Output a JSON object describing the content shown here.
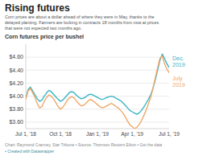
{
  "chart_data": {
    "type": "line",
    "title": "Rising futures",
    "subtitle": "Corn prices are about a dollar ahead of where they were in May, thanks to the\ndelayed planting. Farmers are locking in contracts 18 months from now at prices\nthat were not expected two months ago.",
    "ylabel": "Corn futures price per bushel",
    "annotations": [
      "Chart: Raymond Cranney, Star Tribune • Source: Thomson Reuters Eikon • Get the data",
      "• Created with Datawrapper"
    ],
    "categories": [
      "Jul 1, '18",
      null,
      null,
      null,
      null,
      null,
      null,
      null,
      null,
      null,
      null,
      null,
      null,
      null,
      null,
      "Oct 1, '18",
      null,
      null,
      null,
      null,
      null,
      null,
      null,
      null,
      null,
      null,
      null,
      null,
      null,
      null,
      null,
      "Jan 1, '19",
      null,
      null,
      null,
      null,
      null,
      null,
      null,
      null,
      null,
      null,
      null,
      null,
      null,
      null,
      "Apr 1, '19",
      null,
      null,
      null,
      null,
      null,
      null,
      null,
      null,
      null,
      null,
      null,
      null,
      null,
      null,
      null,
      "Jul 1, '19"
    ],
    "series": [
      {
        "name": "Dec.\n2019",
        "color": "#3ab5c6",
        "values": [
          3.97,
          4.1,
          4.14,
          4.08,
          4.02,
          3.96,
          3.92,
          3.94,
          4.0,
          4.05,
          4.09,
          4.07,
          4.03,
          3.99,
          3.95,
          3.92,
          3.94,
          3.98,
          4.02,
          4.06,
          4.07,
          4.05,
          4.01,
          3.98,
          3.96,
          3.97,
          3.99,
          4.02,
          4.03,
          4.02,
          4.0,
          3.98,
          3.96,
          3.95,
          3.96,
          3.98,
          3.99,
          4.0,
          3.99,
          3.97,
          3.95,
          3.93,
          3.9,
          3.86,
          3.82,
          3.78,
          3.76,
          3.74,
          3.72,
          3.74,
          3.78,
          3.83,
          3.89,
          3.95,
          4.02,
          4.12,
          4.25,
          4.4,
          4.55,
          4.65,
          4.58,
          4.5,
          4.44
        ]
      },
      {
        "name": "July\n2019",
        "color": "#f0a868",
        "values": [
          3.95,
          4.08,
          4.12,
          4.05,
          3.98,
          3.88,
          3.82,
          3.84,
          3.92,
          3.98,
          4.02,
          4.0,
          3.96,
          3.9,
          3.84,
          3.8,
          3.83,
          3.88,
          3.94,
          3.98,
          3.99,
          3.97,
          3.92,
          3.88,
          3.85,
          3.86,
          3.89,
          3.93,
          3.95,
          3.93,
          3.9,
          3.87,
          3.84,
          3.82,
          3.83,
          3.85,
          3.87,
          3.89,
          3.87,
          3.84,
          3.82,
          3.78,
          3.74,
          3.68,
          3.62,
          3.56,
          3.53,
          3.5,
          3.52,
          3.56,
          3.62,
          3.7,
          3.78,
          3.88,
          3.98,
          4.12,
          4.28,
          4.44,
          4.58,
          4.62,
          4.5,
          4.42,
          4.36
        ]
      }
    ],
    "ylim": [
      3.5,
      4.8
    ],
    "yticks": [
      {
        "value": 3.6,
        "label": "$3.60"
      },
      {
        "value": 3.8,
        "label": "$3.80"
      },
      {
        "value": 4.0,
        "label": "$4.00"
      },
      {
        "value": 4.2,
        "label": "$4.20"
      },
      {
        "value": 4.4,
        "label": "$4.40"
      },
      {
        "value": 4.6,
        "label": "$4.60"
      }
    ],
    "grid": true
  }
}
